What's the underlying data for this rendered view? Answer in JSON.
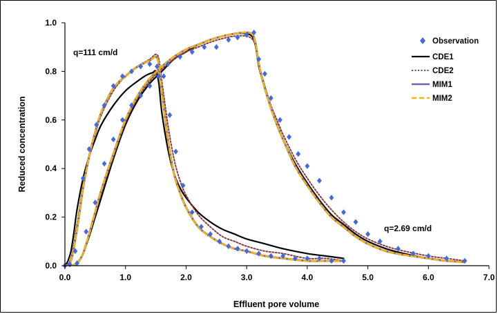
{
  "chart_data": {
    "type": "scatter",
    "xlabel": "Effluent pore volume",
    "ylabel": "Reduced concentration",
    "xlim": [
      0,
      7
    ],
    "ylim": [
      0,
      1
    ],
    "xticks": [
      "0.0",
      "1.0",
      "2.0",
      "3.0",
      "4.0",
      "5.0",
      "6.0",
      "7.0"
    ],
    "yticks": [
      "0.0",
      "0.2",
      "0.4",
      "0.6",
      "0.8",
      "1.0"
    ],
    "legend_position": "top-right",
    "legend": [
      "Observation",
      "CDE1",
      "CDE2",
      "MIM1",
      "MIM2"
    ],
    "colors": {
      "observation": "#4169e1",
      "cde1": "#000000",
      "cde2": "#8b3a3a",
      "mim1": "#7b5fa6",
      "mim2": "#f5b800"
    },
    "annotations": [
      "q=111 cm/d",
      "q=2.69 cm/d"
    ],
    "series": [
      {
        "name": "Observation",
        "group": "q=111 cm/d",
        "marker": "diamond",
        "x": [
          0.0,
          0.08,
          0.17,
          0.3,
          0.4,
          0.52,
          0.65,
          0.8,
          0.95,
          1.1,
          1.25,
          1.4,
          1.52,
          1.63,
          1.73,
          1.83,
          1.95,
          2.1,
          2.25,
          2.4,
          2.55,
          2.7,
          2.85,
          3.0,
          3.2,
          3.4,
          3.6,
          3.8,
          4.0,
          4.2,
          4.4,
          4.6
        ],
        "y": [
          0.0,
          0.005,
          0.06,
          0.36,
          0.48,
          0.58,
          0.66,
          0.74,
          0.78,
          0.8,
          0.82,
          0.83,
          0.82,
          0.78,
          0.62,
          0.47,
          0.33,
          0.22,
          0.16,
          0.13,
          0.1,
          0.08,
          0.07,
          0.06,
          0.05,
          0.04,
          0.04,
          0.03,
          0.03,
          0.03,
          0.02,
          0.02
        ]
      },
      {
        "name": "Observation",
        "group": "q=2.69 cm/d",
        "marker": "diamond",
        "x": [
          0.2,
          0.35,
          0.5,
          0.65,
          0.8,
          0.95,
          1.1,
          1.25,
          1.4,
          1.55,
          1.7,
          1.9,
          2.1,
          2.3,
          2.5,
          2.7,
          2.85,
          3.0,
          3.12,
          3.2,
          3.3,
          3.4,
          3.55,
          3.7,
          3.85,
          4.0,
          4.2,
          4.4,
          4.6,
          4.8,
          5.0,
          5.2,
          5.5,
          5.75,
          6.0,
          6.3,
          6.6
        ],
        "y": [
          0.01,
          0.14,
          0.26,
          0.42,
          0.52,
          0.6,
          0.66,
          0.7,
          0.74,
          0.78,
          0.83,
          0.86,
          0.88,
          0.9,
          0.9,
          0.93,
          0.94,
          0.95,
          0.96,
          0.85,
          0.79,
          0.69,
          0.6,
          0.53,
          0.46,
          0.41,
          0.35,
          0.28,
          0.22,
          0.18,
          0.13,
          0.1,
          0.07,
          0.05,
          0.04,
          0.03,
          0.02
        ]
      },
      {
        "name": "CDE1",
        "group": "q=111 cm/d",
        "x": [
          0.0,
          0.05,
          0.1,
          0.15,
          0.2,
          0.3,
          0.4,
          0.5,
          0.6,
          0.8,
          1.0,
          1.2,
          1.35,
          1.45,
          1.5,
          1.55,
          1.6,
          1.7,
          1.8,
          1.9,
          2.0,
          2.2,
          2.4,
          2.6,
          2.8,
          3.0,
          3.3,
          3.6,
          4.0,
          4.3,
          4.6
        ],
        "y": [
          0.0,
          0.02,
          0.06,
          0.14,
          0.23,
          0.36,
          0.45,
          0.52,
          0.58,
          0.66,
          0.72,
          0.76,
          0.785,
          0.795,
          0.8,
          0.75,
          0.63,
          0.48,
          0.38,
          0.32,
          0.28,
          0.22,
          0.18,
          0.15,
          0.13,
          0.11,
          0.09,
          0.07,
          0.05,
          0.04,
          0.03
        ]
      },
      {
        "name": "CDE2",
        "group": "q=111 cm/d",
        "x": [
          0.0,
          0.1,
          0.2,
          0.3,
          0.4,
          0.5,
          0.6,
          0.8,
          1.0,
          1.2,
          1.4,
          1.5,
          1.55,
          1.6,
          1.7,
          1.8,
          1.9,
          2.0,
          2.2,
          2.4,
          2.6,
          2.8,
          3.0,
          3.3,
          3.6,
          4.0,
          4.3,
          4.6
        ],
        "y": [
          0.0,
          0.03,
          0.17,
          0.33,
          0.45,
          0.54,
          0.62,
          0.72,
          0.78,
          0.82,
          0.85,
          0.87,
          0.85,
          0.76,
          0.58,
          0.44,
          0.35,
          0.29,
          0.21,
          0.16,
          0.12,
          0.1,
          0.08,
          0.06,
          0.05,
          0.03,
          0.03,
          0.02
        ]
      },
      {
        "name": "MIM1",
        "group": "q=111 cm/d",
        "x": [
          0.0,
          0.1,
          0.2,
          0.3,
          0.4,
          0.5,
          0.6,
          0.8,
          1.0,
          1.2,
          1.4,
          1.5,
          1.55,
          1.6,
          1.7,
          1.8,
          1.9,
          2.0,
          2.2,
          2.4,
          2.6,
          2.8,
          3.0,
          3.3,
          3.6,
          4.0,
          4.3,
          4.6
        ],
        "y": [
          0.0,
          0.02,
          0.15,
          0.32,
          0.45,
          0.55,
          0.63,
          0.73,
          0.78,
          0.82,
          0.845,
          0.86,
          0.83,
          0.72,
          0.52,
          0.38,
          0.3,
          0.24,
          0.16,
          0.12,
          0.09,
          0.07,
          0.06,
          0.04,
          0.03,
          0.02,
          0.02,
          0.02
        ]
      },
      {
        "name": "MIM2",
        "group": "q=111 cm/d",
        "x": [
          0.0,
          0.1,
          0.2,
          0.3,
          0.4,
          0.5,
          0.6,
          0.8,
          1.0,
          1.2,
          1.4,
          1.5,
          1.55,
          1.6,
          1.7,
          1.8,
          1.9,
          2.0,
          2.2,
          2.4,
          2.6,
          2.8,
          3.0,
          3.3,
          3.6,
          4.0,
          4.3,
          4.6
        ],
        "y": [
          0.0,
          0.02,
          0.15,
          0.32,
          0.45,
          0.55,
          0.63,
          0.73,
          0.78,
          0.82,
          0.845,
          0.86,
          0.83,
          0.72,
          0.52,
          0.38,
          0.3,
          0.24,
          0.16,
          0.12,
          0.09,
          0.07,
          0.06,
          0.04,
          0.03,
          0.02,
          0.02,
          0.02
        ]
      },
      {
        "name": "CDE1",
        "group": "q=2.69 cm/d",
        "x": [
          0.1,
          0.2,
          0.3,
          0.4,
          0.5,
          0.6,
          0.8,
          1.0,
          1.2,
          1.4,
          1.6,
          1.8,
          2.0,
          2.2,
          2.4,
          2.6,
          2.8,
          3.0,
          3.1,
          3.15,
          3.2,
          3.3,
          3.4,
          3.5,
          3.6,
          3.8,
          4.0,
          4.2,
          4.4,
          4.6,
          4.8,
          5.0,
          5.3,
          5.6,
          6.0,
          6.3,
          6.6
        ],
        "y": [
          0.0,
          0.01,
          0.05,
          0.12,
          0.2,
          0.28,
          0.44,
          0.58,
          0.68,
          0.75,
          0.8,
          0.85,
          0.88,
          0.91,
          0.93,
          0.945,
          0.955,
          0.955,
          0.94,
          0.9,
          0.82,
          0.73,
          0.65,
          0.58,
          0.52,
          0.42,
          0.34,
          0.27,
          0.21,
          0.17,
          0.13,
          0.1,
          0.07,
          0.05,
          0.03,
          0.02,
          0.015
        ]
      },
      {
        "name": "CDE2",
        "group": "q=2.69 cm/d",
        "x": [
          0.1,
          0.2,
          0.3,
          0.4,
          0.5,
          0.6,
          0.8,
          1.0,
          1.2,
          1.4,
          1.6,
          1.8,
          2.0,
          2.2,
          2.4,
          2.6,
          2.8,
          3.0,
          3.1,
          3.15,
          3.2,
          3.3,
          3.4,
          3.5,
          3.6,
          3.8,
          4.0,
          4.2,
          4.4,
          4.6,
          4.8,
          5.0,
          5.3,
          5.6,
          6.0,
          6.3,
          6.6
        ],
        "y": [
          0.0,
          0.01,
          0.05,
          0.13,
          0.21,
          0.3,
          0.45,
          0.59,
          0.69,
          0.76,
          0.81,
          0.85,
          0.88,
          0.9,
          0.92,
          0.935,
          0.945,
          0.945,
          0.93,
          0.9,
          0.83,
          0.74,
          0.66,
          0.6,
          0.54,
          0.44,
          0.36,
          0.29,
          0.23,
          0.18,
          0.14,
          0.11,
          0.08,
          0.06,
          0.04,
          0.03,
          0.02
        ]
      },
      {
        "name": "MIM1",
        "group": "q=2.69 cm/d",
        "x": [
          0.1,
          0.2,
          0.3,
          0.4,
          0.5,
          0.6,
          0.8,
          1.0,
          1.2,
          1.4,
          1.6,
          1.8,
          2.0,
          2.2,
          2.4,
          2.6,
          2.8,
          3.0,
          3.1,
          3.15,
          3.2,
          3.3,
          3.4,
          3.5,
          3.6,
          3.8,
          4.0,
          4.2,
          4.4,
          4.6,
          4.8,
          5.0,
          5.3,
          5.6,
          6.0,
          6.3,
          6.6
        ],
        "y": [
          0.0,
          0.01,
          0.05,
          0.13,
          0.22,
          0.31,
          0.46,
          0.6,
          0.7,
          0.77,
          0.82,
          0.86,
          0.89,
          0.91,
          0.93,
          0.945,
          0.955,
          0.96,
          0.95,
          0.91,
          0.83,
          0.73,
          0.65,
          0.58,
          0.52,
          0.41,
          0.33,
          0.26,
          0.2,
          0.16,
          0.12,
          0.09,
          0.06,
          0.045,
          0.03,
          0.02,
          0.015
        ]
      },
      {
        "name": "MIM2",
        "group": "q=2.69 cm/d",
        "x": [
          0.1,
          0.2,
          0.3,
          0.4,
          0.5,
          0.6,
          0.8,
          1.0,
          1.2,
          1.4,
          1.6,
          1.8,
          2.0,
          2.2,
          2.4,
          2.6,
          2.8,
          3.0,
          3.1,
          3.15,
          3.2,
          3.3,
          3.4,
          3.5,
          3.6,
          3.8,
          4.0,
          4.2,
          4.4,
          4.6,
          4.8,
          5.0,
          5.3,
          5.6,
          6.0,
          6.3,
          6.6
        ],
        "y": [
          0.0,
          0.01,
          0.05,
          0.13,
          0.22,
          0.31,
          0.46,
          0.6,
          0.7,
          0.77,
          0.82,
          0.86,
          0.89,
          0.91,
          0.93,
          0.945,
          0.955,
          0.96,
          0.95,
          0.91,
          0.83,
          0.73,
          0.65,
          0.58,
          0.52,
          0.41,
          0.33,
          0.26,
          0.2,
          0.16,
          0.12,
          0.09,
          0.06,
          0.045,
          0.03,
          0.02,
          0.015
        ]
      }
    ]
  }
}
